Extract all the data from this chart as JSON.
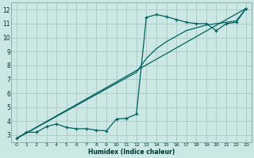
{
  "xlabel": "Humidex (Indice chaleur)",
  "bg_color": "#cce8e4",
  "grid_color": "#b0ccc8",
  "line_color": "#006060",
  "xlim": [
    -0.5,
    23.5
  ],
  "ylim": [
    2.5,
    12.5
  ],
  "xticks": [
    0,
    1,
    2,
    3,
    4,
    5,
    6,
    7,
    8,
    9,
    10,
    11,
    12,
    13,
    14,
    15,
    16,
    17,
    18,
    19,
    20,
    21,
    22,
    23
  ],
  "yticks": [
    3,
    4,
    5,
    6,
    7,
    8,
    9,
    10,
    11,
    12
  ],
  "line1_x": [
    0,
    1,
    2,
    3,
    4,
    5,
    6,
    7,
    8,
    9,
    10,
    11,
    12,
    13,
    14,
    15,
    16,
    17,
    18,
    19,
    20,
    21,
    22,
    23
  ],
  "line1_y": [
    2.75,
    3.2,
    3.2,
    3.6,
    3.8,
    3.55,
    3.45,
    3.45,
    3.35,
    3.3,
    4.15,
    4.2,
    4.5,
    11.45,
    11.65,
    11.5,
    11.3,
    11.1,
    11.0,
    11.0,
    10.5,
    11.0,
    11.1,
    12.1
  ],
  "line2_x": [
    0,
    12,
    13,
    14,
    15,
    16,
    17,
    18,
    19,
    20,
    21,
    22,
    23
  ],
  "line2_y": [
    2.75,
    7.5,
    8.5,
    9.2,
    9.7,
    10.1,
    10.5,
    10.7,
    10.9,
    11.0,
    11.1,
    11.2,
    12.1
  ],
  "line3_x": [
    0,
    23
  ],
  "line3_y": [
    2.75,
    12.1
  ],
  "marker_size": 3,
  "line_width": 0.9,
  "xtick_fontsize": 4.5,
  "ytick_fontsize": 5.5,
  "xlabel_fontsize": 5.5
}
